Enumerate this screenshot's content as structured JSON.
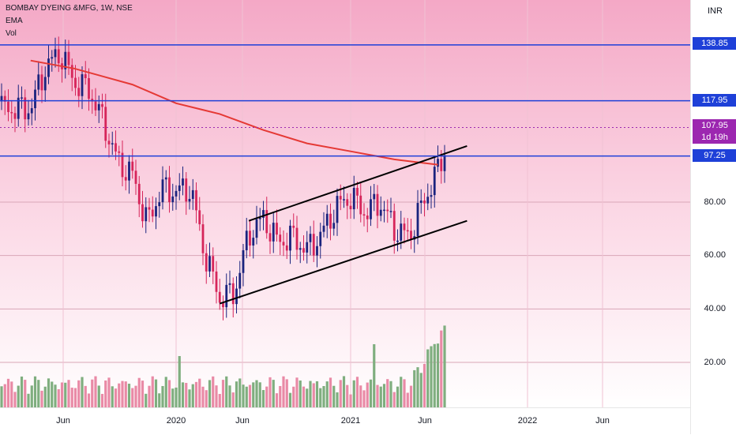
{
  "header": {
    "symbol_title": "BOMBAY DYEING &MFG, 1W, NSE",
    "ema_label": "EMA",
    "vol_label": "Vol"
  },
  "axis": {
    "currency": "INR",
    "y_ticks": [
      "80.00",
      "60.00",
      "40.00",
      "20.00"
    ],
    "x_ticks": [
      "Jun",
      "2020",
      "Jun",
      "2021",
      "Jun",
      "2022",
      "Jun"
    ]
  },
  "badges": {
    "level_1": "138.85",
    "level_2": "117.95",
    "last_price": "107.95",
    "countdown": "1d 19h",
    "level_3": "97.25"
  },
  "colors": {
    "up_candle": "#1a237e",
    "down_candle": "#d6255a",
    "ema_line": "#e53935",
    "level_line": "#1e40d8",
    "price_badge": "#9c27b0",
    "vol_up": "#7fae7f",
    "vol_down": "#e98aa6"
  },
  "chart_data": {
    "type": "candlestick",
    "timeframe": "1W",
    "exchange": "NSE",
    "y_range": [
      20,
      140
    ],
    "horizontal_levels": [
      138.85,
      117.95,
      97.25
    ],
    "last_price": 107.95,
    "ema_points": [
      [
        "2019-03",
        133
      ],
      [
        "2019-06",
        130
      ],
      [
        "2019-10",
        124
      ],
      [
        "2020-01",
        117
      ],
      [
        "2020-04",
        113
      ],
      [
        "2020-07",
        107
      ],
      [
        "2020-10",
        102
      ],
      [
        "2021-01",
        99
      ],
      [
        "2021-04",
        96
      ],
      [
        "2021-07",
        94
      ]
    ],
    "channel_upper": [
      [
        "2020-06",
        73
      ],
      [
        "2021-09",
        101
      ]
    ],
    "channel_lower": [
      [
        "2020-04",
        42
      ],
      [
        "2021-09",
        73
      ]
    ],
    "price_path": [
      [
        "2019-03",
        115
      ],
      [
        "2019-04",
        130
      ],
      [
        "2019-05",
        136
      ],
      [
        "2019-06",
        125
      ],
      [
        "2019-07",
        122
      ],
      [
        "2019-08",
        110
      ],
      [
        "2019-09",
        95
      ],
      [
        "2019-10",
        90
      ],
      [
        "2019-11",
        72
      ],
      [
        "2019-12",
        85
      ],
      [
        "2020-01",
        84
      ],
      [
        "2020-02",
        85
      ],
      [
        "2020-03",
        60
      ],
      [
        "2020-04",
        44
      ],
      [
        "2020-05",
        46
      ],
      [
        "2020-06",
        68
      ],
      [
        "2020-07",
        74
      ],
      [
        "2020-08",
        65
      ],
      [
        "2020-09",
        67
      ],
      [
        "2020-10",
        62
      ],
      [
        "2020-11",
        68
      ],
      [
        "2020-12",
        78
      ],
      [
        "2021-01",
        82
      ],
      [
        "2021-02",
        76
      ],
      [
        "2021-03",
        80
      ],
      [
        "2021-04",
        70
      ],
      [
        "2021-05",
        67
      ],
      [
        "2021-06",
        80
      ],
      [
        "2021-07",
        92
      ],
      [
        "2021-08",
        108
      ]
    ]
  }
}
